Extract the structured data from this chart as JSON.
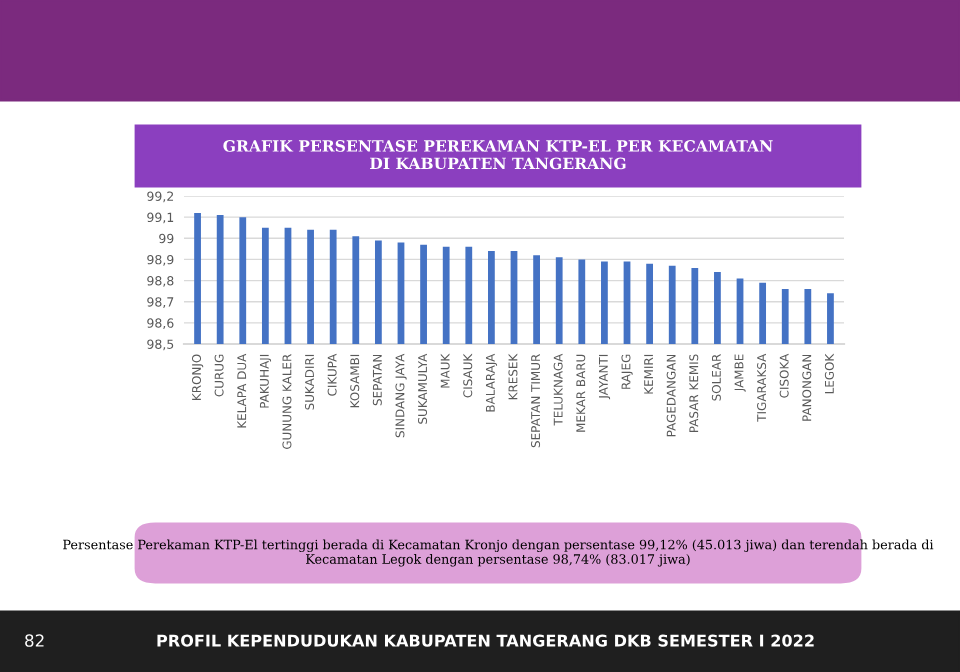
{
  "chart_data": {
    "type": "bar",
    "title": "GRAFIK PERSENTASE PEREKAMAN KTP-EL PER KECAMATAN\nDI KABUPATEN TANGERANG",
    "categories": [
      "KRONJO",
      "CURUG",
      "KELAPA DUA",
      "PAKUHAJI",
      "GUNUNG KALER",
      "SUKADIRI",
      "CIKUPA",
      "KOSAMBI",
      "SEPATAN",
      "SINDANG JAYA",
      "SUKAMULYA",
      "MAUK",
      "CISAUK",
      "BALARAJA",
      "KRESEK",
      "SEPATAN TIMUR",
      "TELUKNAGA",
      "MEKAR BARU",
      "JAYANTI",
      "RAJEG",
      "KEMIRI",
      "PAGEDANGAN",
      "PASAR KEMIS",
      "SOLEAR",
      "JAMBE",
      "TIGARAKSA",
      "CISOKA",
      "PANONGAN",
      "LEGOK"
    ],
    "values": [
      99.12,
      99.11,
      99.1,
      99.05,
      99.05,
      99.04,
      99.04,
      99.01,
      98.99,
      98.98,
      98.97,
      98.96,
      98.96,
      98.94,
      98.94,
      98.92,
      98.91,
      98.9,
      98.89,
      98.89,
      98.88,
      98.87,
      98.86,
      98.84,
      98.81,
      98.79,
      98.76,
      98.76,
      98.74
    ],
    "color": "#4472c4",
    "ylim": [
      98.5,
      99.2
    ],
    "yticks": [
      {
        "value": 98.5,
        "label": "98,5"
      },
      {
        "value": 98.6,
        "label": "98,6"
      },
      {
        "value": 98.7,
        "label": "98,7"
      },
      {
        "value": 98.8,
        "label": "98,8"
      },
      {
        "value": 98.9,
        "label": "98,9"
      },
      {
        "value": 99,
        "label": "99"
      },
      {
        "value": 99.1,
        "label": "99,1"
      },
      {
        "value": 99.2,
        "label": "99,2"
      }
    ],
    "grid": "y",
    "annotations": [
      "Persentase Perekaman KTP-El tertinggi berada di Kecamatan Kronjo dengan persentase 99,12% (45.013 jiwa) dan terendah berada di Kecamatan Legok dengan persentase 98,74% (83.017 jiwa)",
      "82",
      "PROFIL KEPENDUDUKAN KABUPATEN TANGERANG DKB SEMESTER I 2022"
    ]
  }
}
